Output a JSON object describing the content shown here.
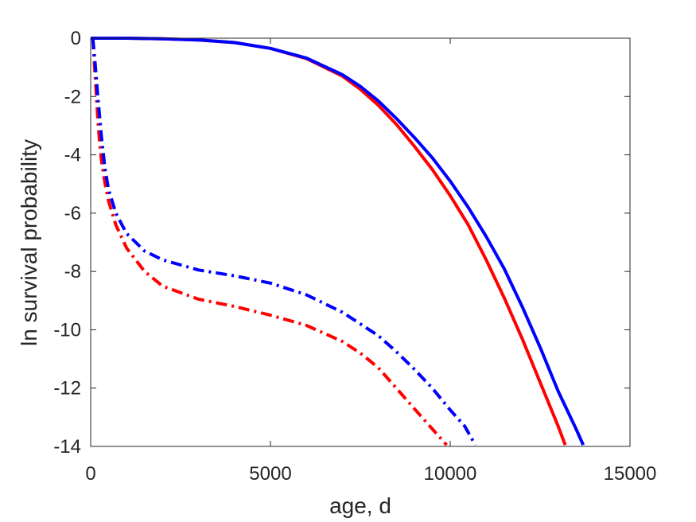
{
  "chart_data": {
    "type": "line",
    "title": "",
    "xlabel": "age, d",
    "ylabel": "ln survival probability",
    "xlim": [
      0,
      15000
    ],
    "ylim": [
      -14,
      0
    ],
    "xticks": [
      0,
      5000,
      10000,
      15000
    ],
    "yticks": [
      0,
      -2,
      -4,
      -6,
      -8,
      -10,
      -12,
      -14
    ],
    "xtick_labels": [
      "0",
      "5000",
      "10000",
      "15000"
    ],
    "ytick_labels": [
      "0",
      "-2",
      "-4",
      "-6",
      "-8",
      "-10",
      "-12",
      "-14"
    ],
    "grid": false,
    "legend": "none",
    "series": [
      {
        "color": "#ff0000",
        "style": "solid",
        "x": [
          0,
          1000,
          2000,
          3000,
          4000,
          5000,
          6000,
          7000,
          7500,
          8000,
          8500,
          9000,
          9500,
          10000,
          10500,
          11000,
          11500,
          12000,
          12500,
          13000,
          13200
        ],
        "y": [
          0,
          0,
          -0.02,
          -0.06,
          -0.15,
          -0.35,
          -0.7,
          -1.3,
          -1.75,
          -2.3,
          -2.95,
          -3.7,
          -4.5,
          -5.4,
          -6.4,
          -7.6,
          -8.9,
          -10.3,
          -11.8,
          -13.3,
          -13.95
        ]
      },
      {
        "color": "#0000ff",
        "style": "solid",
        "x": [
          0,
          1000,
          2000,
          3000,
          4000,
          5000,
          6000,
          7000,
          7500,
          8000,
          8500,
          9000,
          9500,
          10000,
          10500,
          11000,
          11500,
          12000,
          12500,
          13000,
          13500,
          13700
        ],
        "y": [
          0,
          0,
          -0.02,
          -0.06,
          -0.15,
          -0.35,
          -0.68,
          -1.25,
          -1.65,
          -2.15,
          -2.75,
          -3.4,
          -4.1,
          -4.9,
          -5.8,
          -6.8,
          -7.9,
          -9.2,
          -10.6,
          -12.1,
          -13.4,
          -13.95
        ]
      },
      {
        "color": "#ff0000",
        "style": "dashdot",
        "x": [
          60,
          120,
          200,
          250,
          300,
          400,
          500,
          700,
          1000,
          1500,
          2000,
          3000,
          4000,
          5000,
          6000,
          7000,
          7500,
          8000,
          8500,
          9000,
          9500,
          9900
        ],
        "y": [
          0,
          -1.2,
          -2.8,
          -3.6,
          -4.2,
          -5.0,
          -5.6,
          -6.4,
          -7.2,
          -8.0,
          -8.5,
          -8.95,
          -9.2,
          -9.5,
          -9.85,
          -10.4,
          -10.8,
          -11.3,
          -12.0,
          -12.7,
          -13.4,
          -13.95
        ]
      },
      {
        "color": "#0000ff",
        "style": "dashdot",
        "x": [
          60,
          120,
          200,
          300,
          400,
          500,
          600,
          700,
          1000,
          1500,
          2000,
          3000,
          4000,
          5000,
          6000,
          7000,
          7500,
          8000,
          8500,
          9000,
          9500,
          10000,
          10400,
          10700
        ],
        "y": [
          0,
          -0.8,
          -2.0,
          -3.4,
          -4.5,
          -5.2,
          -5.6,
          -6.0,
          -6.7,
          -7.3,
          -7.6,
          -7.95,
          -8.15,
          -8.4,
          -8.8,
          -9.4,
          -9.8,
          -10.2,
          -10.75,
          -11.35,
          -12.0,
          -12.75,
          -13.3,
          -13.95
        ]
      }
    ]
  }
}
